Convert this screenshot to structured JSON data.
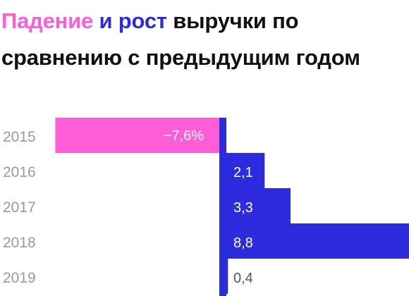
{
  "title": {
    "part1": "Падение",
    "part2": "и рост",
    "part3": "выручки по сравнению с предыдущим годом"
  },
  "colors": {
    "negative": "#ff5cd7",
    "positive": "#2c2cde",
    "year_label": "#999999",
    "value_on_bar": "#ffffff",
    "value_off_bar": "#555555",
    "axis": "#2c2cde",
    "title": "#111111"
  },
  "chart_data": {
    "type": "bar",
    "orientation": "horizontal",
    "categories": [
      "2015",
      "2016",
      "2017",
      "2018",
      "2019"
    ],
    "values": [
      -7.6,
      2.1,
      3.3,
      8.8,
      0.4
    ],
    "labels": [
      "−7,6%",
      "2,1",
      "3,3",
      "8,8",
      "0,4"
    ],
    "title": "Падение и рост выручки по сравнению с предыдущим годом",
    "xlabel": "",
    "ylabel": "",
    "grid": false,
    "legend": "none"
  }
}
